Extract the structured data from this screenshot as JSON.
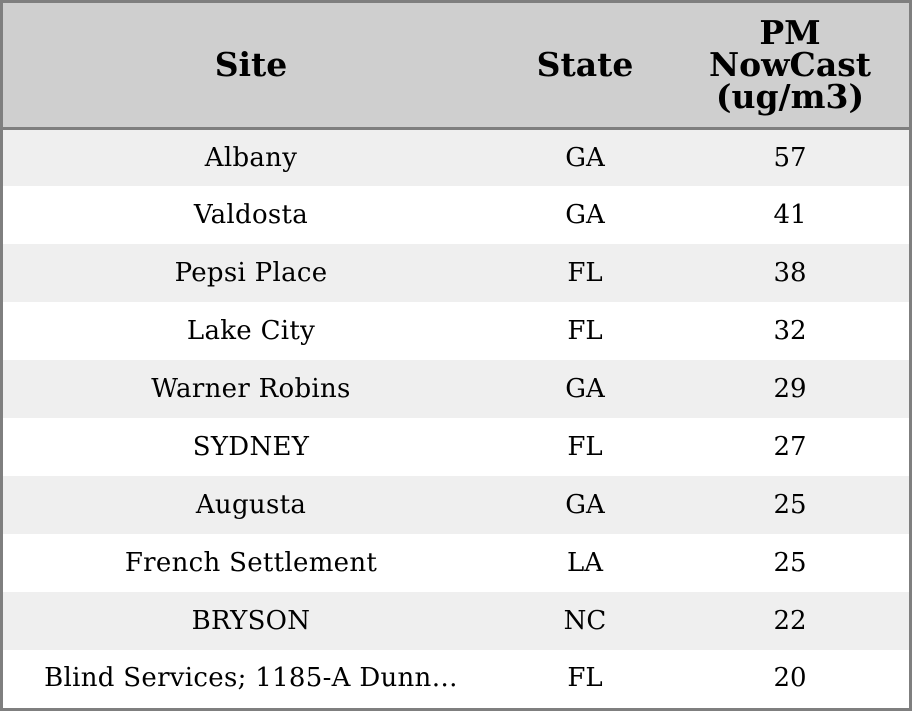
{
  "chart_data": {
    "type": "table",
    "columns": [
      "Site",
      "State",
      "PM NowCast (ug/m3)"
    ],
    "header_lines": {
      "site": "Site",
      "state": "State",
      "pm": [
        "PM",
        "NowCast",
        "(ug/m3)"
      ]
    },
    "rows": [
      {
        "site": "Albany",
        "state": "GA",
        "pm": 57
      },
      {
        "site": "Valdosta",
        "state": "GA",
        "pm": 41
      },
      {
        "site": "Pepsi Place",
        "state": "FL",
        "pm": 38
      },
      {
        "site": "Lake City",
        "state": "FL",
        "pm": 32
      },
      {
        "site": "Warner Robins",
        "state": "GA",
        "pm": 29
      },
      {
        "site": "SYDNEY",
        "state": "FL",
        "pm": 27
      },
      {
        "site": "Augusta",
        "state": "GA",
        "pm": 25
      },
      {
        "site": "French Settlement",
        "state": "LA",
        "pm": 25
      },
      {
        "site": "BRYSON",
        "state": "NC",
        "pm": 22
      },
      {
        "site": "Blind Services; 1185-A Dunn…",
        "state": "FL",
        "pm": 20
      }
    ],
    "colors": {
      "header_bg": "#cfcfcf",
      "row_alt_bg": "#efefef",
      "row_bg": "#ffffff",
      "border": "#7f7f7f"
    }
  }
}
